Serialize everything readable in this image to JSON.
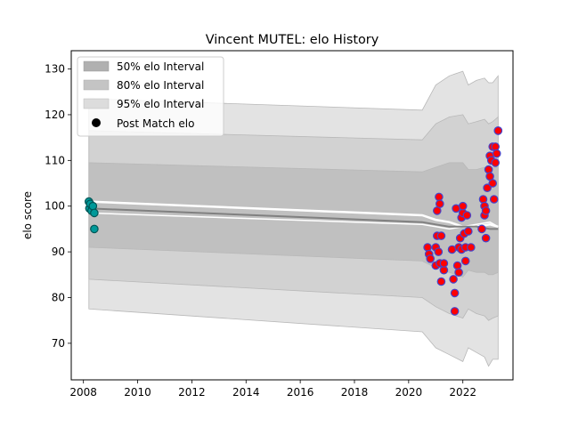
{
  "chart_data": {
    "type": "scatter",
    "title": "Vincent MUTEL: elo History",
    "xlabel": "",
    "ylabel": "elo score",
    "xlim": [
      2007.55,
      2023.85
    ],
    "ylim": [
      62,
      134
    ],
    "xticks": [
      2008,
      2010,
      2012,
      2014,
      2016,
      2018,
      2020,
      2022
    ],
    "yticks": [
      70,
      80,
      90,
      100,
      110,
      120,
      130
    ],
    "grid": false,
    "legend_position": "top-left",
    "legend": [
      {
        "label": "50% elo Interval",
        "color": "#b0b0b0",
        "kind": "patch"
      },
      {
        "label": "80% elo Interval",
        "color": "#c4c4c4",
        "kind": "patch"
      },
      {
        "label": "95% elo Interval",
        "color": "#dcdcdc",
        "kind": "patch"
      },
      {
        "label": "Post Match elo",
        "color": "#000000",
        "kind": "marker"
      }
    ],
    "bands": [
      {
        "name": "95% elo Interval",
        "color": "#e3e3e3",
        "x": [
          2008.2,
          2020.5,
          2021.0,
          2021.5,
          2022.0,
          2022.2,
          2022.5,
          2022.8,
          2022.95,
          2023.1,
          2023.3
        ],
        "upper": [
          123.5,
          121.0,
          126.5,
          128.5,
          129.5,
          126.5,
          127.5,
          128.0,
          127.0,
          127.0,
          128.5
        ],
        "lower": [
          77.5,
          72.5,
          69.0,
          67.5,
          66.0,
          69.0,
          68.0,
          67.0,
          65.0,
          66.5,
          66.5
        ]
      },
      {
        "name": "80% elo Interval",
        "color": "#d2d2d2",
        "x": [
          2008.2,
          2020.5,
          2021.0,
          2021.5,
          2022.0,
          2022.2,
          2022.5,
          2022.8,
          2022.95,
          2023.1,
          2023.3
        ],
        "upper": [
          116.5,
          114.5,
          118.0,
          119.5,
          120.0,
          118.0,
          118.5,
          119.0,
          118.0,
          118.5,
          119.5
        ],
        "lower": [
          84.0,
          80.0,
          78.0,
          76.5,
          75.5,
          77.5,
          76.5,
          76.0,
          75.0,
          75.5,
          76.0
        ]
      },
      {
        "name": "50% elo Interval",
        "color": "#c0c0c0",
        "x": [
          2008.2,
          2020.5,
          2021.0,
          2021.5,
          2022.0,
          2022.2,
          2022.5,
          2022.8,
          2022.95,
          2023.1,
          2023.3
        ],
        "upper": [
          109.5,
          107.5,
          108.5,
          109.5,
          109.5,
          108.0,
          108.0,
          108.5,
          108.0,
          108.5,
          108.5
        ],
        "lower": [
          91.0,
          88.0,
          86.5,
          85.5,
          84.5,
          86.0,
          85.5,
          85.5,
          85.0,
          85.0,
          85.5
        ]
      }
    ],
    "lines": [
      {
        "color": "#ffffff",
        "width": 2.5,
        "x": [
          2008.2,
          2020.5,
          2021.0,
          2021.5,
          2022.0,
          2022.5,
          2023.0,
          2023.3
        ],
        "y": [
          101.0,
          98.0,
          97.0,
          96.5,
          95.5,
          95.5,
          96.0,
          95.5
        ]
      },
      {
        "color": "#ffffff",
        "width": 1.5,
        "x": [
          2008.2,
          2020.5,
          2021.0,
          2021.5,
          2022.0,
          2022.5,
          2023.0,
          2023.3
        ],
        "y": [
          98.5,
          96.0,
          95.5,
          95.0,
          95.5,
          96.0,
          96.5,
          95.5
        ]
      },
      {
        "color": "#808080",
        "width": 2,
        "x": [
          2008.2,
          2020.5,
          2021.0,
          2021.5,
          2022.0,
          2022.5,
          2023.0,
          2023.3
        ],
        "y": [
          99.5,
          96.5,
          96.0,
          95.5,
          95.5,
          95.5,
          95.0,
          95.0
        ]
      }
    ],
    "series": [
      {
        "name": "",
        "face": "#009999",
        "edge": "#005555",
        "x": [
          2008.2,
          2008.22,
          2008.25,
          2008.3,
          2008.35,
          2008.4,
          2008.4
        ],
        "y": [
          101.0,
          99.5,
          100.5,
          99.0,
          100.0,
          98.5,
          95.0
        ]
      },
      {
        "name": "",
        "face": "#ff0000",
        "edge": "#4444cc",
        "x": [
          2020.7,
          2020.75,
          2020.8,
          2021.0,
          2021.0,
          2021.05,
          2021.05,
          2021.1,
          2021.12,
          2021.15,
          2021.15,
          2021.2,
          2021.2,
          2021.3,
          2021.3,
          2021.6,
          2021.65,
          2021.7,
          2021.7,
          2021.75,
          2021.8,
          2021.85,
          2021.85,
          2021.9,
          2021.95,
          2021.95,
          2022.0,
          2022.0,
          2022.05,
          2022.1,
          2022.1,
          2022.15,
          2022.2,
          2022.3,
          2022.7,
          2022.75,
          2022.8,
          2022.8,
          2022.85,
          2022.85,
          2022.9,
          2022.95,
          2023.0,
          2023.0,
          2023.05,
          2023.1,
          2023.1,
          2023.15,
          2023.2
        ],
        "y": [
          91.0,
          89.5,
          88.5,
          91.0,
          87.0,
          93.5,
          99.0,
          90.0,
          102.0,
          100.5,
          87.5,
          83.5,
          93.5,
          86.0,
          87.5,
          90.5,
          84.0,
          77.0,
          81.0,
          99.5,
          87.0,
          91.0,
          85.5,
          93.0,
          90.5,
          97.5,
          98.5,
          100.0,
          94.0,
          88.0,
          91.0,
          98.0,
          94.5,
          91.0,
          95.0,
          101.5,
          100.0,
          98.0,
          93.0,
          99.0,
          104.0,
          108.0,
          106.5,
          111.0,
          110.0,
          113.0,
          105.0,
          101.5,
          109.5
        ]
      },
      {
        "name": "",
        "face": "#ff0000",
        "edge": "#4444cc",
        "x": [
          2023.2,
          2023.25,
          2023.3,
          2023.3
        ],
        "y": [
          113.0,
          111.5,
          116.5,
          116.5
        ]
      }
    ]
  }
}
